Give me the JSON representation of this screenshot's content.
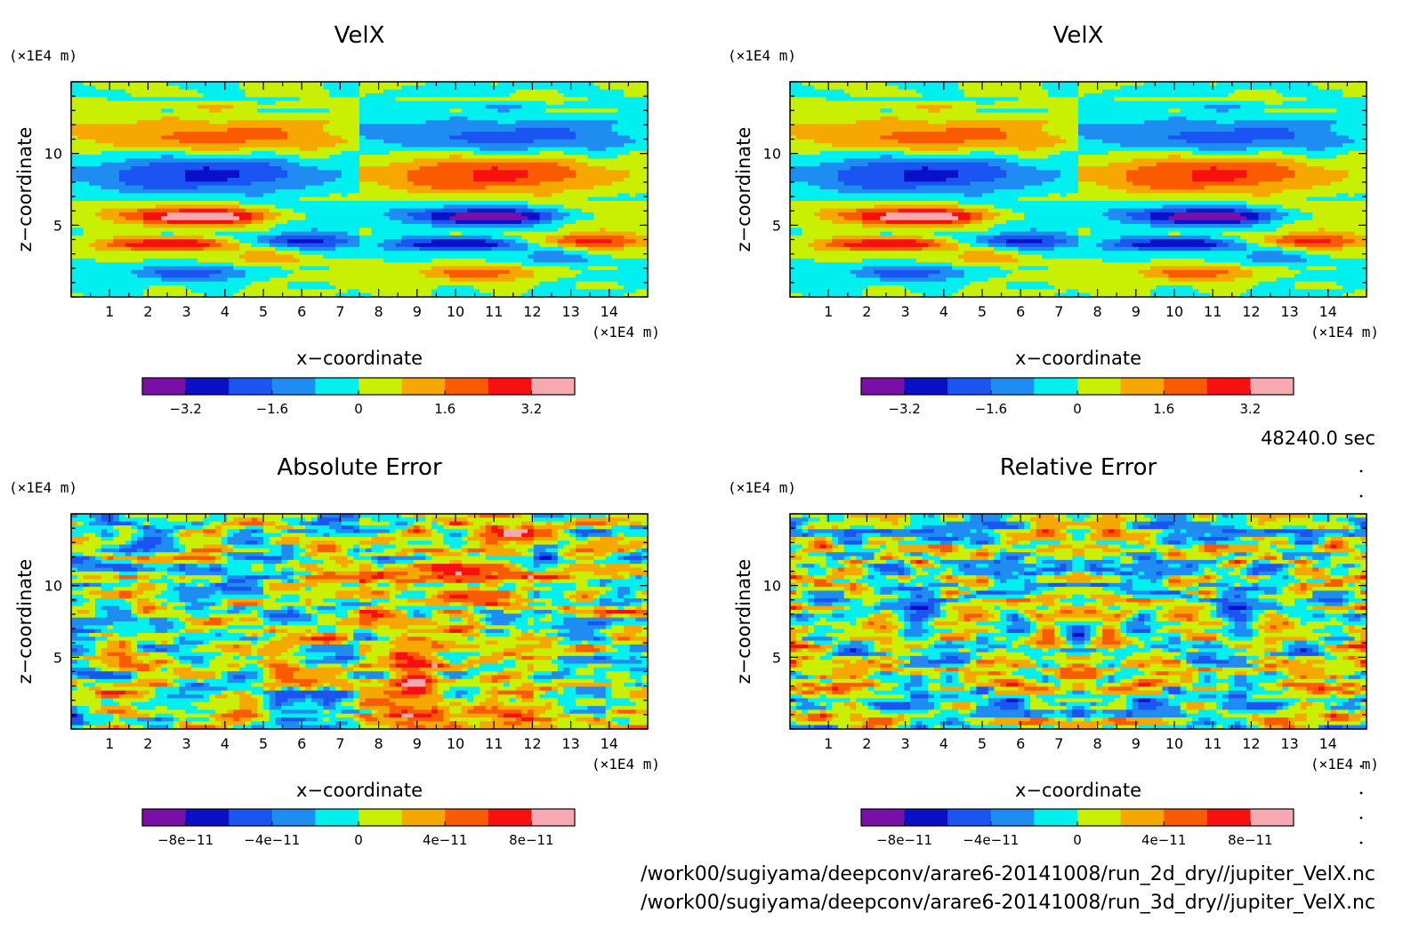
{
  "time_label": "48240.0 sec",
  "files": [
    "/work00/sugiyama/deepconv/arare6-20141008/run_2d_dry//jupiter_VelX.nc",
    "/work00/sugiyama/deepconv/arare6-20141008/run_3d_dry//jupiter_VelX.nc"
  ],
  "colors": {
    "levels": [
      "#7a0fa8",
      "#0a10c8",
      "#1a55f2",
      "#1e8cf0",
      "#00f0f0",
      "#c8f000",
      "#f7a800",
      "#fa5a00",
      "#f81010",
      "#f8a8b0"
    ]
  },
  "chart_data": [
    {
      "type": "heatmap",
      "title": "VelX",
      "xlabel": "x−coordinate",
      "ylabel": "z−coordinate",
      "x_unit": "(×1E4 m)",
      "y_unit": "(×1E4 m)",
      "xlim": [
        0,
        15
      ],
      "ylim": [
        0,
        15
      ],
      "xticks": [
        1,
        2,
        3,
        4,
        5,
        6,
        7,
        8,
        9,
        10,
        11,
        12,
        13,
        14
      ],
      "yticks": [
        5,
        10
      ],
      "colorbar": {
        "min": -4,
        "max": 4,
        "labels": [
          "−3.2",
          "−1.6",
          "0",
          "1.6",
          "3.2"
        ]
      },
      "pattern": "velx"
    },
    {
      "type": "heatmap",
      "title": "VelX",
      "xlabel": "x−coordinate",
      "ylabel": "z−coordinate",
      "x_unit": "(×1E4 m)",
      "y_unit": "(×1E4 m)",
      "xlim": [
        0,
        15
      ],
      "ylim": [
        0,
        15
      ],
      "xticks": [
        1,
        2,
        3,
        4,
        5,
        6,
        7,
        8,
        9,
        10,
        11,
        12,
        13,
        14
      ],
      "yticks": [
        5,
        10
      ],
      "colorbar": {
        "min": -4,
        "max": 4,
        "labels": [
          "−3.2",
          "−1.6",
          "0",
          "1.6",
          "3.2"
        ]
      },
      "pattern": "velx"
    },
    {
      "type": "heatmap",
      "title": "Absolute Error",
      "xlabel": "x−coordinate",
      "ylabel": "z−coordinate",
      "x_unit": "(×1E4 m)",
      "y_unit": "(×1E4 m)",
      "xlim": [
        0,
        15
      ],
      "ylim": [
        0,
        15
      ],
      "xticks": [
        1,
        2,
        3,
        4,
        5,
        6,
        7,
        8,
        9,
        10,
        11,
        12,
        13,
        14
      ],
      "yticks": [
        5,
        10
      ],
      "colorbar": {
        "min": -1e-10,
        "max": 1e-10,
        "labels": [
          "−8e−11",
          "−4e−11",
          "0",
          "4e−11",
          "8e−11"
        ]
      },
      "pattern": "noise_abs"
    },
    {
      "type": "heatmap",
      "title": "Relative Error",
      "xlabel": "x−coordinate",
      "ylabel": "z−coordinate",
      "x_unit": "(×1E4 m)",
      "y_unit": "(×1E4 m)",
      "xlim": [
        0,
        15
      ],
      "ylim": [
        0,
        15
      ],
      "xticks": [
        1,
        2,
        3,
        4,
        5,
        6,
        7,
        8,
        9,
        10,
        11,
        12,
        13,
        14
      ],
      "yticks": [
        5,
        10
      ],
      "colorbar": {
        "min": -1e-10,
        "max": 1e-10,
        "labels": [
          "−8e−11",
          "−4e−11",
          "0",
          "4e−11",
          "8e−11"
        ]
      },
      "pattern": "noise_rel"
    }
  ]
}
